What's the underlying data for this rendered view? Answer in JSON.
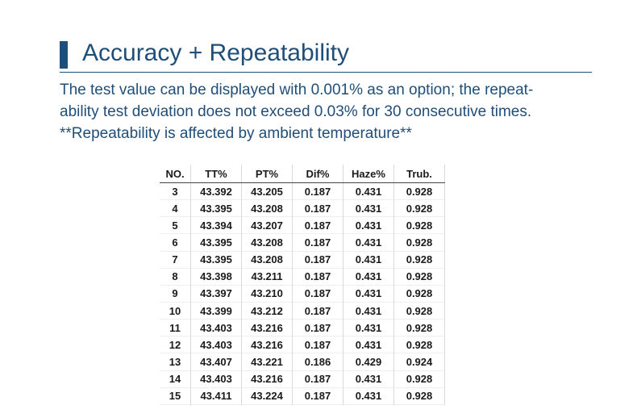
{
  "title": "Accuracy + Repeatability",
  "description": {
    "line1": "The test value can be displayed with 0.001% as an option; the repeat-",
    "line2": "ability test deviation does not exceed 0.03% for 30 consecutive times.",
    "line3": "**Repeatability is affected by ambient temperature**"
  },
  "table": {
    "headers": [
      "NO.",
      "TT%",
      "PT%",
      "Dif%",
      "Haze%",
      "Trub."
    ],
    "rows": [
      [
        "3",
        "43.392",
        "43.205",
        "0.187",
        "0.431",
        "0.928"
      ],
      [
        "4",
        "43.395",
        "43.208",
        "0.187",
        "0.431",
        "0.928"
      ],
      [
        "5",
        "43.394",
        "43.207",
        "0.187",
        "0.431",
        "0.928"
      ],
      [
        "6",
        "43.395",
        "43.208",
        "0.187",
        "0.431",
        "0.928"
      ],
      [
        "7",
        "43.395",
        "43.208",
        "0.187",
        "0.431",
        "0.928"
      ],
      [
        "8",
        "43.398",
        "43.211",
        "0.187",
        "0.431",
        "0.928"
      ],
      [
        "9",
        "43.397",
        "43.210",
        "0.187",
        "0.431",
        "0.928"
      ],
      [
        "10",
        "43.399",
        "43.212",
        "0.187",
        "0.431",
        "0.928"
      ],
      [
        "11",
        "43.403",
        "43.216",
        "0.187",
        "0.431",
        "0.928"
      ],
      [
        "12",
        "43.403",
        "43.216",
        "0.187",
        "0.431",
        "0.928"
      ],
      [
        "13",
        "43.407",
        "43.221",
        "0.186",
        "0.429",
        "0.924"
      ],
      [
        "14",
        "43.403",
        "43.216",
        "0.187",
        "0.431",
        "0.928"
      ],
      [
        "15",
        "43.411",
        "43.224",
        "0.187",
        "0.431",
        "0.928"
      ]
    ]
  },
  "colors": {
    "accent": "#1f4e79",
    "table_text": "#1a1a1a"
  }
}
